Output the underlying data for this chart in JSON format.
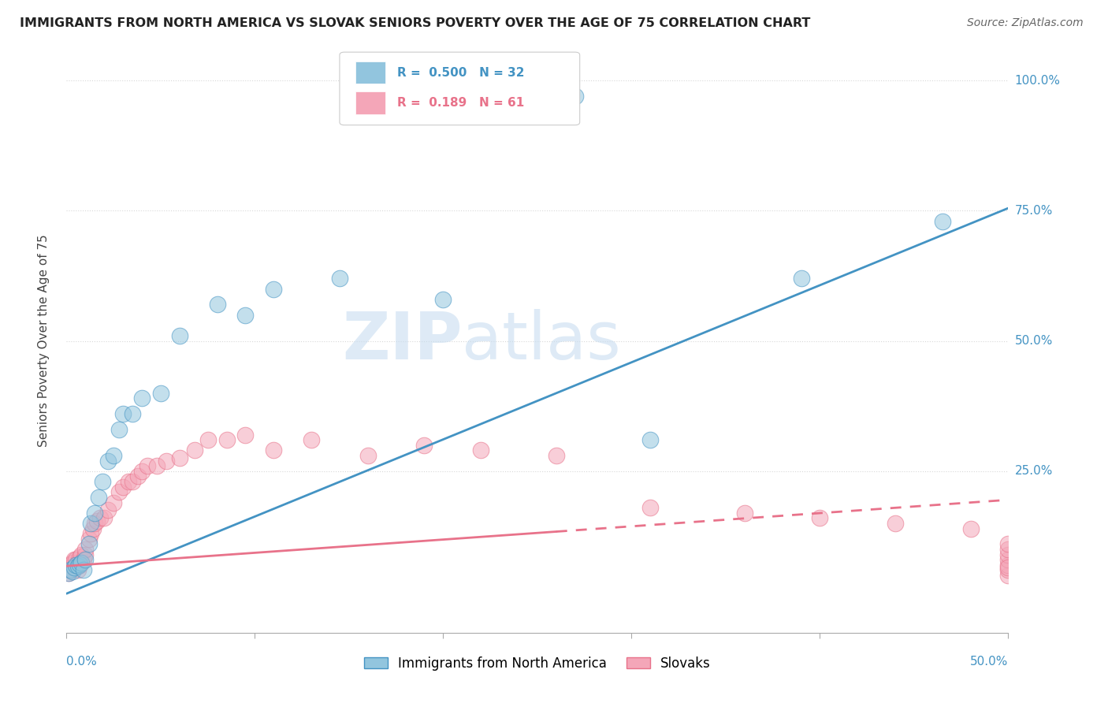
{
  "title": "IMMIGRANTS FROM NORTH AMERICA VS SLOVAK SENIORS POVERTY OVER THE AGE OF 75 CORRELATION CHART",
  "source": "Source: ZipAtlas.com",
  "ylabel": "Seniors Poverty Over the Age of 75",
  "legend1_label": "Immigrants from North America",
  "legend2_label": "Slovaks",
  "R1": 0.5,
  "N1": 32,
  "R2": 0.189,
  "N2": 61,
  "color_blue": "#92c5de",
  "color_pink": "#f4a6b8",
  "color_blue_line": "#4393c3",
  "color_pink_line": "#e8728a",
  "background_color": "#ffffff",
  "grid_color": "#d8d8d8",
  "xlim": [
    0.0,
    0.5
  ],
  "ylim": [
    -0.06,
    1.06
  ],
  "ytick_positions": [
    0.0,
    0.25,
    0.5,
    0.75,
    1.0
  ],
  "ytick_labels": [
    "",
    "25.0%",
    "50.0%",
    "75.0%",
    "100.0%"
  ],
  "blue_line_y0": 0.015,
  "blue_line_y1": 0.755,
  "pink_line_y0": 0.068,
  "pink_line_y1": 0.195,
  "blue_x": [
    0.001,
    0.002,
    0.003,
    0.004,
    0.005,
    0.006,
    0.007,
    0.008,
    0.009,
    0.01,
    0.012,
    0.013,
    0.015,
    0.017,
    0.019,
    0.022,
    0.025,
    0.028,
    0.03,
    0.035,
    0.04,
    0.05,
    0.06,
    0.08,
    0.095,
    0.11,
    0.145,
    0.2,
    0.27,
    0.31,
    0.39,
    0.465
  ],
  "blue_y": [
    0.055,
    0.06,
    0.058,
    0.065,
    0.07,
    0.068,
    0.072,
    0.075,
    0.06,
    0.08,
    0.11,
    0.15,
    0.17,
    0.2,
    0.23,
    0.27,
    0.28,
    0.33,
    0.36,
    0.36,
    0.39,
    0.4,
    0.51,
    0.57,
    0.55,
    0.6,
    0.62,
    0.58,
    0.97,
    0.31,
    0.62,
    0.73
  ],
  "pink_x": [
    0.001,
    0.001,
    0.002,
    0.002,
    0.003,
    0.003,
    0.004,
    0.004,
    0.005,
    0.005,
    0.006,
    0.006,
    0.007,
    0.007,
    0.008,
    0.008,
    0.009,
    0.01,
    0.01,
    0.012,
    0.013,
    0.014,
    0.015,
    0.016,
    0.018,
    0.02,
    0.022,
    0.025,
    0.028,
    0.03,
    0.033,
    0.035,
    0.038,
    0.04,
    0.043,
    0.048,
    0.053,
    0.06,
    0.068,
    0.075,
    0.085,
    0.095,
    0.11,
    0.13,
    0.16,
    0.19,
    0.22,
    0.26,
    0.31,
    0.36,
    0.4,
    0.44,
    0.48,
    0.5,
    0.5,
    0.5,
    0.5,
    0.5,
    0.5,
    0.5,
    0.5
  ],
  "pink_y": [
    0.055,
    0.065,
    0.06,
    0.07,
    0.06,
    0.075,
    0.065,
    0.08,
    0.065,
    0.08,
    0.06,
    0.075,
    0.07,
    0.085,
    0.075,
    0.09,
    0.08,
    0.09,
    0.1,
    0.12,
    0.13,
    0.14,
    0.15,
    0.155,
    0.16,
    0.16,
    0.175,
    0.19,
    0.21,
    0.22,
    0.23,
    0.23,
    0.24,
    0.25,
    0.26,
    0.26,
    0.27,
    0.275,
    0.29,
    0.31,
    0.31,
    0.32,
    0.29,
    0.31,
    0.28,
    0.3,
    0.29,
    0.28,
    0.18,
    0.17,
    0.16,
    0.15,
    0.14,
    0.05,
    0.06,
    0.07,
    0.08,
    0.09,
    0.1,
    0.11,
    0.065
  ]
}
